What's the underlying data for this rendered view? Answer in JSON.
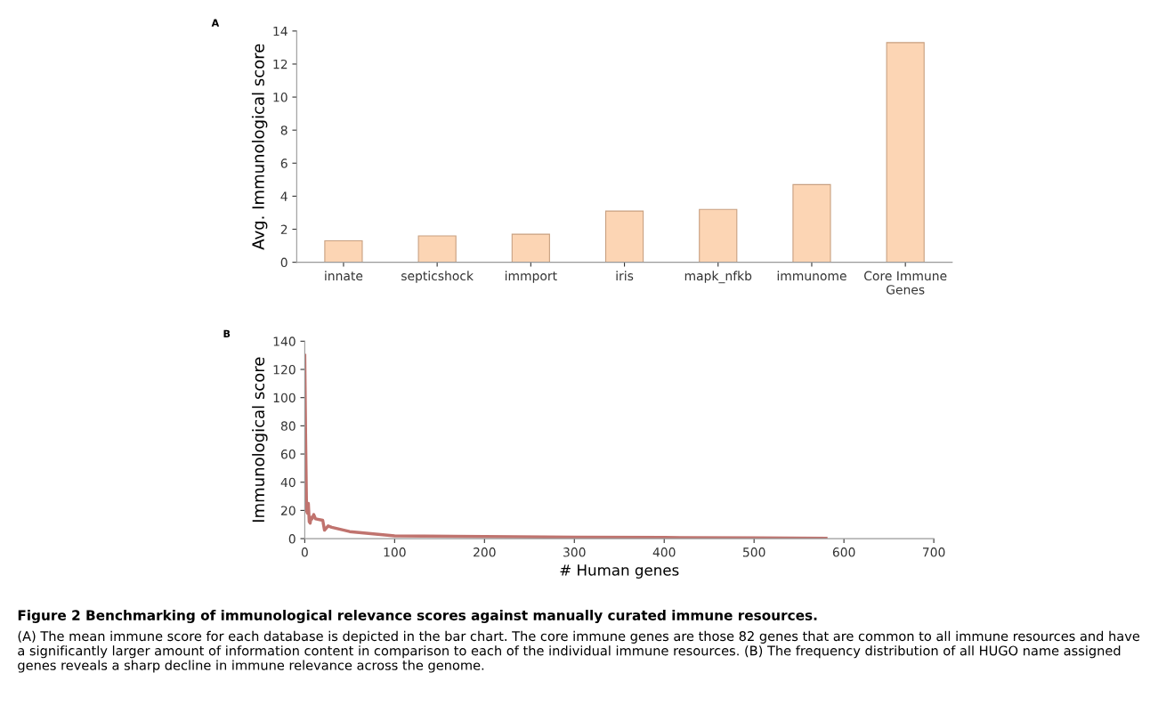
{
  "chart_data": [
    {
      "type": "bar",
      "title": "A",
      "ylabel": "Avg. Immunological score",
      "categories": [
        "innate",
        "septicshock",
        "immport",
        "iris",
        "mapk_nfkb",
        "immunome",
        "Core Immune Genes"
      ],
      "values": [
        1.3,
        1.6,
        1.7,
        3.1,
        3.2,
        4.7,
        13.3
      ],
      "color": "#fcd5b4",
      "ylim": [
        0,
        14
      ],
      "yticks": [
        0,
        2,
        4,
        6,
        8,
        10,
        12,
        14
      ],
      "grid": false
    },
    {
      "type": "line",
      "title": "B",
      "xlabel": "# Human genes",
      "ylabel": "Immunological score",
      "x": [
        0,
        1,
        2,
        3,
        4,
        5,
        6,
        7,
        8,
        10,
        12,
        20,
        22,
        26,
        30,
        50,
        100,
        200,
        300,
        400,
        500,
        580
      ],
      "series": [
        {
          "color": "#c0736e",
          "values": [
            130,
            70,
            20,
            18,
            25,
            12,
            11,
            15,
            14,
            17,
            14,
            13,
            6,
            9,
            8,
            5,
            2,
            1.5,
            1,
            0.8,
            0.5,
            0.3
          ]
        }
      ],
      "xlim": [
        0,
        700
      ],
      "xticks": [
        0,
        100,
        200,
        300,
        400,
        500,
        600,
        700
      ],
      "ylim": [
        0,
        140
      ],
      "yticks": [
        0,
        20,
        40,
        60,
        80,
        100,
        120,
        140
      ],
      "grid": false,
      "marker": "none",
      "line_style": "solid",
      "annotations": [
        "Figure 2 Benchmarking of immunological relevance scores against manually curated immune resources.",
        "(A) The mean immune score for each database is depicted in the bar chart. The core immune genes are those 82 genes that are common to all immune resources and have a significantly larger amount of information content in comparison to each of the individual immune resources. (B) The frequency distribution of all HUGO name assigned genes reveals a sharp decline in immune relevance across the genome."
      ]
    }
  ]
}
